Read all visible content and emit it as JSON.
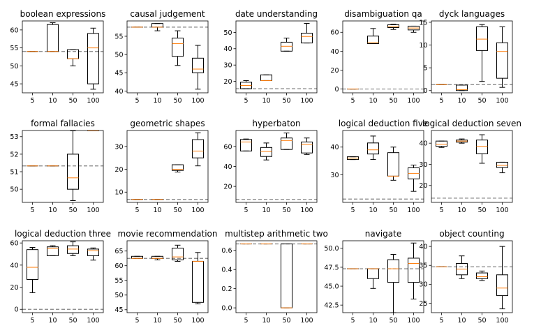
{
  "chart_data": {
    "type": "box",
    "shared_x_categories": [
      "5",
      "10",
      "50",
      "100"
    ],
    "colors": {
      "median": "#ff7f0e",
      "box": "#000000",
      "baseline": "#808080"
    },
    "baseline_style": "dashed",
    "panels": [
      {
        "title": "boolean expressions",
        "ylim": [
          42.5,
          62.5
        ],
        "yticks": [
          45,
          50,
          55,
          60
        ],
        "tick_labels": [
          "45",
          "50",
          "55",
          "60"
        ],
        "baseline": 54.0,
        "boxes": [
          {
            "x": "5",
            "whislo": 54.0,
            "q1": 54.0,
            "med": 54.0,
            "q3": 54.0,
            "whishi": 54.0
          },
          {
            "x": "10",
            "whislo": 54.0,
            "q1": 54.0,
            "med": 54.0,
            "q3": 61.5,
            "whishi": 62.0
          },
          {
            "x": "50",
            "whislo": 50.0,
            "q1": 52.0,
            "med": 52.0,
            "q3": 54.5,
            "whishi": 54.5
          },
          {
            "x": "100",
            "whislo": 43.5,
            "q1": 45.0,
            "med": 55.0,
            "q3": 59.0,
            "whishi": 60.5
          }
        ]
      },
      {
        "title": "causal judgement",
        "ylim": [
          39.5,
          59.2
        ],
        "yticks": [
          40,
          45,
          50,
          55
        ],
        "tick_labels": [
          "40",
          "45",
          "50",
          "55"
        ],
        "baseline": 57.5,
        "boxes": [
          {
            "x": "5",
            "whislo": 57.5,
            "q1": 57.5,
            "med": 57.5,
            "q3": 57.5,
            "whishi": 57.5
          },
          {
            "x": "10",
            "whislo": 56.5,
            "q1": 57.5,
            "med": 57.5,
            "q3": 58.5,
            "whishi": 58.5
          },
          {
            "x": "50",
            "whislo": 47.0,
            "q1": 49.5,
            "med": 53.0,
            "q3": 54.5,
            "whishi": 56.5
          },
          {
            "x": "100",
            "whislo": 40.5,
            "q1": 45.0,
            "med": 46.0,
            "q3": 49.0,
            "whishi": 52.5
          }
        ]
      },
      {
        "title": "date understanding",
        "ylim": [
          13,
          57
        ],
        "yticks": [
          20,
          30,
          40,
          50
        ],
        "tick_labels": [
          "20",
          "30",
          "40",
          "50"
        ],
        "baseline": 15.5,
        "boxes": [
          {
            "x": "5",
            "whislo": 15.5,
            "q1": 15.5,
            "med": 17.5,
            "q3": 19.5,
            "whishi": 20.5
          },
          {
            "x": "10",
            "whislo": 20.5,
            "q1": 20.5,
            "med": 20.5,
            "q3": 24.0,
            "whishi": 24.0
          },
          {
            "x": "50",
            "whislo": 38.5,
            "q1": 38.5,
            "med": 41.5,
            "q3": 44.0,
            "whishi": 46.5
          },
          {
            "x": "100",
            "whislo": 43.5,
            "q1": 43.5,
            "med": 47.5,
            "q3": 49.5,
            "whishi": 55.5
          }
        ]
      },
      {
        "title": "disambiguation qa",
        "ylim": [
          -4,
          72
        ],
        "yticks": [
          0,
          20,
          40,
          60
        ],
        "tick_labels": [
          "0",
          "20",
          "40",
          "60"
        ],
        "baseline": 0.0,
        "boxes": [
          {
            "x": "5",
            "whislo": 0.0,
            "q1": 0.0,
            "med": 0.0,
            "q3": 0.0,
            "whishi": 0.0
          },
          {
            "x": "10",
            "whislo": 48.0,
            "q1": 48.0,
            "med": 49.0,
            "q3": 56.0,
            "whishi": 64.0
          },
          {
            "x": "50",
            "whislo": 63.0,
            "q1": 65.0,
            "med": 66.0,
            "q3": 68.0,
            "whishi": 68.5
          },
          {
            "x": "100",
            "whislo": 60.0,
            "q1": 62.5,
            "med": 64.5,
            "q3": 66.5,
            "whishi": 66.5
          }
        ]
      },
      {
        "title": "dyck languages",
        "ylim": [
          -0.5,
          15.3
        ],
        "yticks": [
          0,
          5,
          10,
          15
        ],
        "tick_labels": [
          "0",
          "5",
          "10",
          "15"
        ],
        "baseline": 1.3,
        "boxes": [
          {
            "x": "5",
            "whislo": 1.3,
            "q1": 1.3,
            "med": 1.3,
            "q3": 1.3,
            "whishi": 1.3
          },
          {
            "x": "10",
            "whislo": 0.0,
            "q1": 0.0,
            "med": 0.2,
            "q3": 1.2,
            "whishi": 1.2
          },
          {
            "x": "50",
            "whislo": 2.0,
            "q1": 8.8,
            "med": 11.3,
            "q3": 14.0,
            "whishi": 14.5
          },
          {
            "x": "100",
            "whislo": 0.7,
            "q1": 2.7,
            "med": 8.6,
            "q3": 10.5,
            "whishi": 14.0
          }
        ]
      },
      {
        "title": "formal fallacies",
        "ylim": [
          49.25,
          53.35
        ],
        "yticks": [
          50,
          51,
          52,
          53
        ],
        "tick_labels": [
          "50",
          "51",
          "52",
          "53"
        ],
        "baseline": 51.33,
        "boxes": [
          {
            "x": "5",
            "whislo": 51.33,
            "q1": 51.33,
            "med": 51.33,
            "q3": 51.33,
            "whishi": 51.33
          },
          {
            "x": "10",
            "whislo": 51.33,
            "q1": 51.33,
            "med": 51.33,
            "q3": 51.33,
            "whishi": 51.33
          },
          {
            "x": "50",
            "whislo": 49.35,
            "q1": 50.0,
            "med": 50.65,
            "q3": 52.0,
            "whishi": 53.33
          },
          {
            "x": "100",
            "whislo": 53.33,
            "q1": 53.33,
            "med": 53.33,
            "q3": 53.33,
            "whishi": 53.33
          }
        ]
      },
      {
        "title": "geometric shapes",
        "ylim": [
          5.5,
          37
        ],
        "yticks": [
          10,
          20,
          30
        ],
        "tick_labels": [
          "10",
          "20",
          "30"
        ],
        "baseline": 6.8,
        "boxes": [
          {
            "x": "5",
            "whislo": 6.8,
            "q1": 6.8,
            "med": 6.8,
            "q3": 6.8,
            "whishi": 6.8
          },
          {
            "x": "10",
            "whislo": 6.8,
            "q1": 6.8,
            "med": 6.8,
            "q3": 6.8,
            "whishi": 6.8
          },
          {
            "x": "50",
            "whislo": 18.8,
            "q1": 19.5,
            "med": 20.0,
            "q3": 22.0,
            "whishi": 22.0
          },
          {
            "x": "100",
            "whislo": 21.5,
            "q1": 25.0,
            "med": 28.0,
            "q3": 33.0,
            "whishi": 36.0
          }
        ]
      },
      {
        "title": "hyperbaton",
        "ylim": [
          4,
          76
        ],
        "yticks": [
          20,
          40,
          60
        ],
        "tick_labels": [
          "20",
          "40",
          "60"
        ],
        "baseline": 7.0,
        "boxes": [
          {
            "x": "5",
            "whislo": 55.5,
            "q1": 55.5,
            "med": 64.5,
            "q3": 67.0,
            "whishi": 67.5
          },
          {
            "x": "10",
            "whislo": 46.5,
            "q1": 50.0,
            "med": 55.0,
            "q3": 59.0,
            "whishi": 63.5
          },
          {
            "x": "50",
            "whislo": 57.0,
            "q1": 57.0,
            "med": 66.0,
            "q3": 68.5,
            "whishi": 73.5
          },
          {
            "x": "100",
            "whislo": 52.0,
            "q1": 53.5,
            "med": 62.0,
            "q3": 64.5,
            "whishi": 68.5
          }
        ]
      },
      {
        "title": "logical deduction five",
        "ylim": [
          20,
          46
        ],
        "yticks": [
          30,
          40
        ],
        "tick_labels": [
          "30",
          "40"
        ],
        "baseline": 21.2,
        "boxes": [
          {
            "x": "5",
            "whislo": 35.5,
            "q1": 35.5,
            "med": 36.0,
            "q3": 36.5,
            "whishi": 36.5
          },
          {
            "x": "10",
            "whislo": 35.5,
            "q1": 37.5,
            "med": 39.0,
            "q3": 41.5,
            "whishi": 44.0
          },
          {
            "x": "50",
            "whislo": 28.0,
            "q1": 29.5,
            "med": 29.5,
            "q3": 38.0,
            "whishi": 40.0
          },
          {
            "x": "100",
            "whislo": 24.0,
            "q1": 28.5,
            "med": 30.5,
            "q3": 32.5,
            "whishi": 33.5
          }
        ]
      },
      {
        "title": "logical deduction seven",
        "ylim": [
          12,
          46
        ],
        "yticks": [
          20,
          30,
          40
        ],
        "tick_labels": [
          "20",
          "30",
          "40"
        ],
        "baseline": 14.0,
        "boxes": [
          {
            "x": "5",
            "whislo": 38.0,
            "q1": 38.5,
            "med": 39.5,
            "q3": 41.0,
            "whishi": 41.0
          },
          {
            "x": "10",
            "whislo": 40.0,
            "q1": 40.5,
            "med": 41.0,
            "q3": 41.5,
            "whishi": 42.0
          },
          {
            "x": "50",
            "whislo": 30.5,
            "q1": 35.0,
            "med": 38.5,
            "q3": 41.5,
            "whishi": 44.0
          },
          {
            "x": "100",
            "whislo": 26.0,
            "q1": 28.5,
            "med": 29.5,
            "q3": 31.0,
            "whishi": 31.0
          }
        ]
      },
      {
        "title": "logical deduction three",
        "ylim": [
          -3,
          62
        ],
        "yticks": [
          0,
          20,
          40,
          60
        ],
        "tick_labels": [
          "0",
          "20",
          "40",
          "60"
        ],
        "baseline": 0.0,
        "boxes": [
          {
            "x": "5",
            "whislo": 15.0,
            "q1": 27.0,
            "med": 38.0,
            "q3": 54.0,
            "whishi": 56.0
          },
          {
            "x": "10",
            "whislo": 48.5,
            "q1": 48.5,
            "med": 55.0,
            "q3": 56.5,
            "whishi": 57.5
          },
          {
            "x": "50",
            "whislo": 48.5,
            "q1": 50.5,
            "med": 54.5,
            "q3": 57.5,
            "whishi": 61.0
          },
          {
            "x": "100",
            "whislo": 44.5,
            "q1": 48.5,
            "med": 53.0,
            "q3": 54.5,
            "whishi": 55.5
          }
        ]
      },
      {
        "title": "movie recommendation",
        "ylim": [
          44,
          68.5
        ],
        "yticks": [
          45,
          50,
          55,
          60,
          65
        ],
        "tick_labels": [
          "45",
          "50",
          "55",
          "60",
          "65"
        ],
        "baseline": 62.5,
        "boxes": [
          {
            "x": "5",
            "whislo": 62.5,
            "q1": 62.5,
            "med": 62.5,
            "q3": 63.2,
            "whishi": 63.2
          },
          {
            "x": "10",
            "whislo": 62.0,
            "q1": 62.5,
            "med": 62.5,
            "q3": 63.2,
            "whishi": 63.2
          },
          {
            "x": "50",
            "whislo": 61.5,
            "q1": 62.0,
            "med": 63.0,
            "q3": 66.0,
            "whishi": 67.0
          },
          {
            "x": "100",
            "whislo": 47.0,
            "q1": 47.5,
            "med": 61.5,
            "q3": 61.5,
            "whishi": 64.5
          }
        ]
      },
      {
        "title": "multistep arithmetic two",
        "ylim": [
          -0.05,
          0.7
        ],
        "yticks": [
          0.0,
          0.2,
          0.4,
          0.6
        ],
        "tick_labels": [
          "0.0",
          "0.2",
          "0.4",
          "0.6"
        ],
        "baseline": 0.667,
        "boxes": [
          {
            "x": "5",
            "whislo": 0.667,
            "q1": 0.667,
            "med": 0.667,
            "q3": 0.667,
            "whishi": 0.667
          },
          {
            "x": "10",
            "whislo": 0.667,
            "q1": 0.667,
            "med": 0.667,
            "q3": 0.667,
            "whishi": 0.667
          },
          {
            "x": "50",
            "whislo": 0.0,
            "q1": 0.0,
            "med": 0.0,
            "q3": 0.667,
            "whishi": 0.667
          },
          {
            "x": "100",
            "whislo": 0.667,
            "q1": 0.667,
            "med": 0.667,
            "q3": 0.667,
            "whishi": 0.667
          }
        ]
      },
      {
        "title": "navigate",
        "ylim": [
          41.5,
          51
        ],
        "yticks": [
          42.5,
          45.0,
          47.5,
          50.0
        ],
        "tick_labels": [
          "42.5",
          "45.0",
          "47.5",
          "50.0"
        ],
        "baseline": 47.3,
        "boxes": [
          {
            "x": "5",
            "whislo": 47.3,
            "q1": 47.3,
            "med": 47.3,
            "q3": 47.3,
            "whishi": 47.3
          },
          {
            "x": "10",
            "whislo": 44.7,
            "q1": 46.0,
            "med": 47.3,
            "q3": 47.3,
            "whishi": 47.3
          },
          {
            "x": "50",
            "whislo": 41.5,
            "q1": 45.5,
            "med": 47.3,
            "q3": 48.5,
            "whishi": 49.2
          },
          {
            "x": "100",
            "whislo": 43.3,
            "q1": 45.5,
            "med": 48.0,
            "q3": 48.7,
            "whishi": 50.7
          }
        ]
      },
      {
        "title": "object counting",
        "ylim": [
          22.5,
          41.5
        ],
        "yticks": [
          25,
          30,
          35,
          40
        ],
        "tick_labels": [
          "25",
          "30",
          "35",
          "40"
        ],
        "baseline": 34.6,
        "boxes": [
          {
            "x": "5",
            "whislo": 34.6,
            "q1": 34.6,
            "med": 34.6,
            "q3": 34.6,
            "whishi": 34.6
          },
          {
            "x": "10",
            "whislo": 31.5,
            "q1": 32.5,
            "med": 34.0,
            "q3": 35.5,
            "whishi": 37.5
          },
          {
            "x": "50",
            "whislo": 31.0,
            "q1": 31.5,
            "med": 32.0,
            "q3": 33.0,
            "whishi": 33.5
          },
          {
            "x": "100",
            "whislo": 23.5,
            "q1": 27.0,
            "med": 29.0,
            "q3": 32.5,
            "whishi": 40.0
          }
        ]
      }
    ]
  }
}
